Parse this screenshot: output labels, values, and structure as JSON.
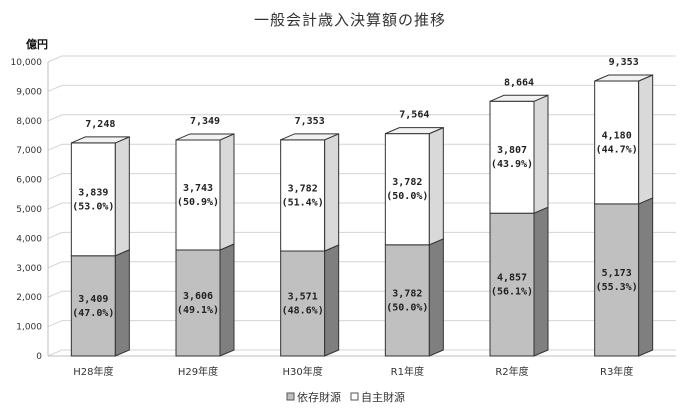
{
  "chart_data": {
    "type": "bar",
    "stacked": true,
    "three_d": true,
    "title": "一般会計歳入決算額の推移",
    "y_unit": "億円",
    "ylim": [
      0,
      10000
    ],
    "yticks": [
      "0",
      "1,000",
      "2,000",
      "3,000",
      "4,000",
      "5,000",
      "6,000",
      "7,000",
      "8,000",
      "9,000",
      "10,000"
    ],
    "categories": [
      "H28年度",
      "H29年度",
      "H30年度",
      "R1年度",
      "R2年度",
      "R3年度"
    ],
    "series": [
      {
        "name": "依存財源",
        "values": [
          3409,
          3606,
          3571,
          3782,
          4857,
          5173
        ],
        "labels": [
          "3,409",
          "3,606",
          "3,571",
          "3,782",
          "4,857",
          "5,173"
        ],
        "pct_labels": [
          "(47.0%)",
          "(49.1%)",
          "(48.6%)",
          "(50.0%)",
          "(56.1%)",
          "(55.3%)"
        ],
        "color": "#c0c0c0",
        "side_color": "#7f7f7f"
      },
      {
        "name": "自主財源",
        "values": [
          3839,
          3743,
          3782,
          3782,
          3807,
          4180
        ],
        "labels": [
          "3,839",
          "3,743",
          "3,782",
          "3,782",
          "3,807",
          "4,180"
        ],
        "pct_labels": [
          "(53.0%)",
          "(50.9%)",
          "(51.4%)",
          "(50.0%)",
          "(43.9%)",
          "(44.7%)"
        ],
        "color": "#ffffff",
        "side_color": "#d9d9d9"
      }
    ],
    "totals": [
      7248,
      7349,
      7353,
      7564,
      8664,
      9353
    ],
    "total_labels": [
      "7,248",
      "7,349",
      "7,353",
      "7,564",
      "8,664",
      "9,353"
    ],
    "grid": true,
    "legend_position": "bottom"
  }
}
